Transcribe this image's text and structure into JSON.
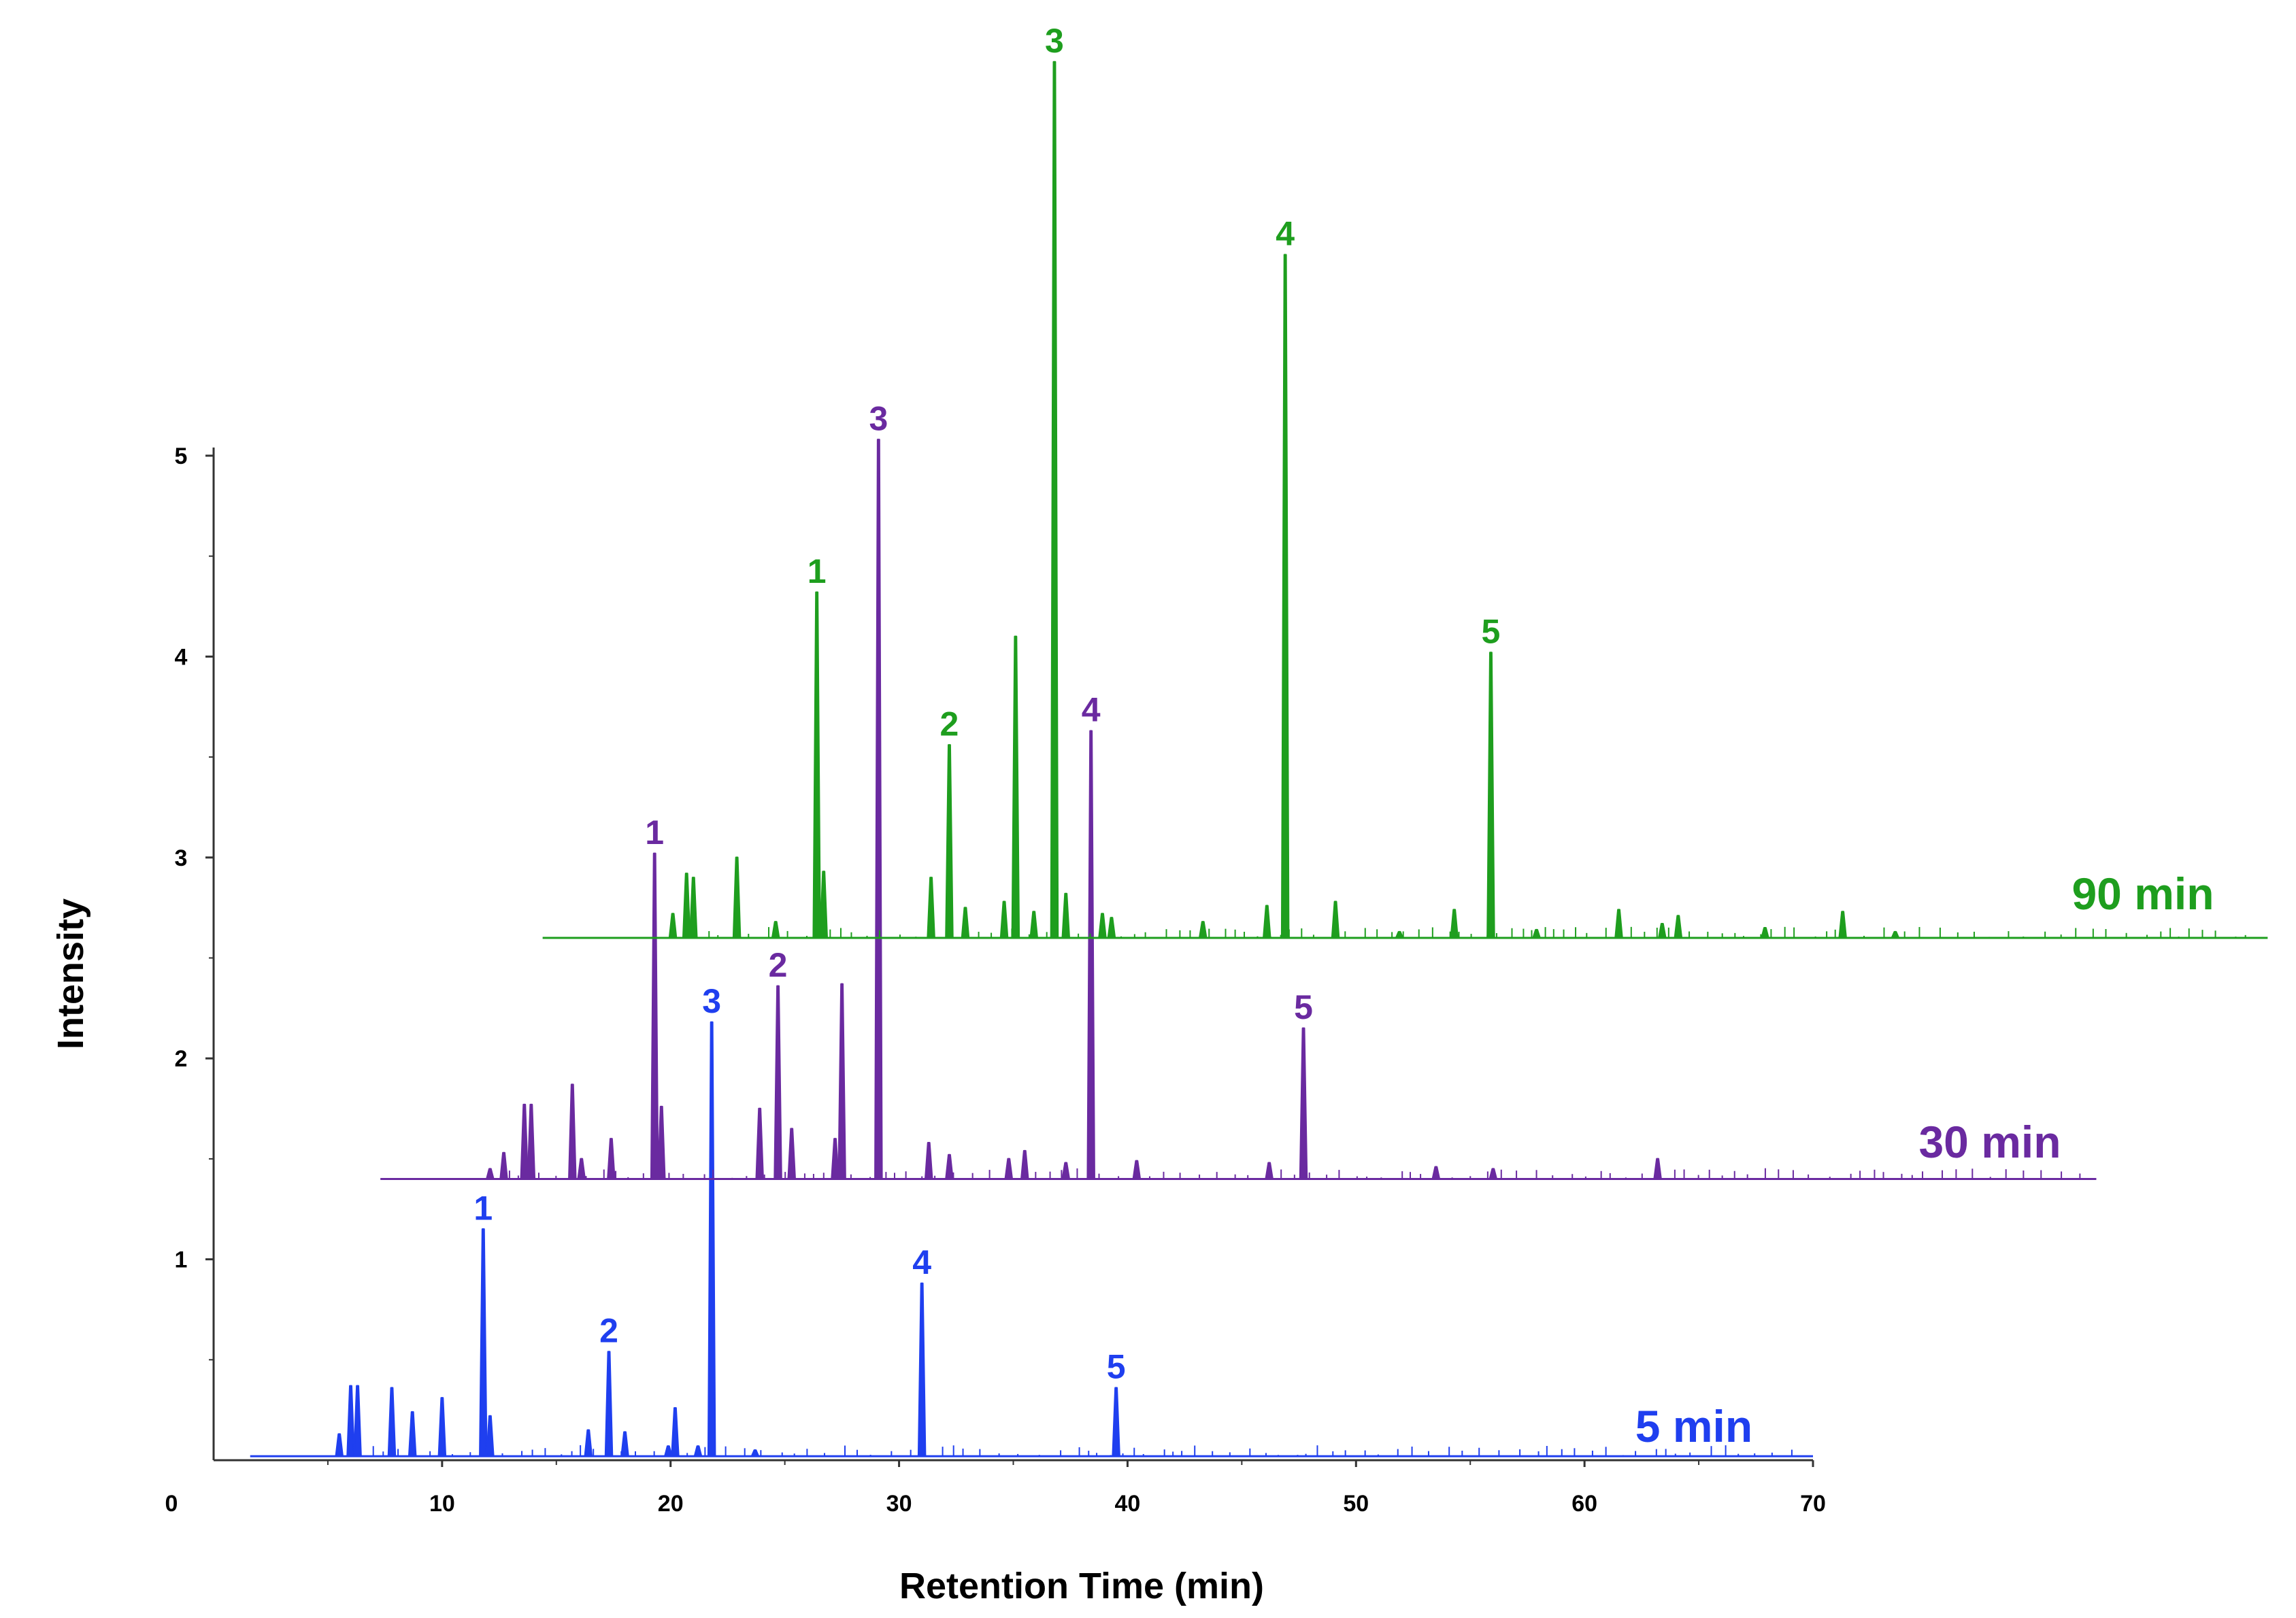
{
  "chart_data": {
    "type": "line",
    "title": "",
    "xlabel": "Retention Time (min)",
    "ylabel": "Intensity",
    "xlim": [
      0,
      70
    ],
    "ylim": [
      0,
      5
    ],
    "xticks": [
      "0",
      "10",
      "20",
      "30",
      "40",
      "50",
      "60",
      "70"
    ],
    "yticks": [
      "1",
      "2",
      "3",
      "4",
      "5"
    ],
    "legend_placement": "right, inline at end of each trace",
    "series": [
      {
        "name": "5 min",
        "color": "#1f3fef",
        "baseline": 0.02,
        "peaks": [
          {
            "t": 5.5,
            "h": 0.13,
            "label": ""
          },
          {
            "t": 6.0,
            "h": 0.37,
            "label": ""
          },
          {
            "t": 6.3,
            "h": 0.37,
            "label": ""
          },
          {
            "t": 7.8,
            "h": 0.36,
            "label": ""
          },
          {
            "t": 8.7,
            "h": 0.24,
            "label": ""
          },
          {
            "t": 10.0,
            "h": 0.31,
            "label": ""
          },
          {
            "t": 11.8,
            "h": 1.15,
            "label": "1"
          },
          {
            "t": 12.1,
            "h": 0.22,
            "label": ""
          },
          {
            "t": 16.4,
            "h": 0.15,
            "label": ""
          },
          {
            "t": 17.3,
            "h": 0.54,
            "label": "2"
          },
          {
            "t": 18.0,
            "h": 0.14,
            "label": ""
          },
          {
            "t": 19.9,
            "h": 0.07,
            "label": ""
          },
          {
            "t": 20.2,
            "h": 0.26,
            "label": ""
          },
          {
            "t": 21.2,
            "h": 0.07,
            "label": ""
          },
          {
            "t": 21.8,
            "h": 2.18,
            "label": "3"
          },
          {
            "t": 23.7,
            "h": 0.05,
            "label": ""
          },
          {
            "t": 31.0,
            "h": 0.88,
            "label": "4"
          },
          {
            "t": 39.5,
            "h": 0.36,
            "label": "5"
          }
        ]
      },
      {
        "name": "30 min",
        "color": "#6a2aa0",
        "baseline": 1.4,
        "peaks": [
          {
            "t": 12.1,
            "h": 1.45,
            "label": ""
          },
          {
            "t": 12.7,
            "h": 1.53,
            "label": ""
          },
          {
            "t": 13.6,
            "h": 1.77,
            "label": ""
          },
          {
            "t": 13.9,
            "h": 1.77,
            "label": ""
          },
          {
            "t": 15.7,
            "h": 1.87,
            "label": ""
          },
          {
            "t": 16.1,
            "h": 1.5,
            "label": ""
          },
          {
            "t": 17.4,
            "h": 1.6,
            "label": ""
          },
          {
            "t": 19.3,
            "h": 3.02,
            "label": "1"
          },
          {
            "t": 19.6,
            "h": 1.76,
            "label": ""
          },
          {
            "t": 23.9,
            "h": 1.75,
            "label": ""
          },
          {
            "t": 24.7,
            "h": 2.36,
            "label": "2"
          },
          {
            "t": 25.3,
            "h": 1.65,
            "label": ""
          },
          {
            "t": 27.2,
            "h": 1.6,
            "label": ""
          },
          {
            "t": 27.5,
            "h": 2.37,
            "label": ""
          },
          {
            "t": 29.1,
            "h": 5.08,
            "label": "3"
          },
          {
            "t": 31.3,
            "h": 1.58,
            "label": ""
          },
          {
            "t": 32.2,
            "h": 1.52,
            "label": ""
          },
          {
            "t": 34.8,
            "h": 1.5,
            "label": ""
          },
          {
            "t": 35.5,
            "h": 1.54,
            "label": ""
          },
          {
            "t": 37.3,
            "h": 1.48,
            "label": ""
          },
          {
            "t": 38.4,
            "h": 3.63,
            "label": "4"
          },
          {
            "t": 40.4,
            "h": 1.49,
            "label": ""
          },
          {
            "t": 46.2,
            "h": 1.48,
            "label": ""
          },
          {
            "t": 47.7,
            "h": 2.15,
            "label": "5"
          },
          {
            "t": 53.5,
            "h": 1.46,
            "label": ""
          },
          {
            "t": 56.0,
            "h": 1.45,
            "label": ""
          },
          {
            "t": 63.2,
            "h": 1.5,
            "label": ""
          }
        ]
      },
      {
        "name": "90 min",
        "color": "#1e9e1e",
        "baseline": 2.6,
        "peaks": [
          {
            "t": 20.1,
            "h": 2.72,
            "label": ""
          },
          {
            "t": 20.7,
            "h": 2.92,
            "label": ""
          },
          {
            "t": 21.0,
            "h": 2.9,
            "label": ""
          },
          {
            "t": 22.9,
            "h": 3.0,
            "label": ""
          },
          {
            "t": 24.6,
            "h": 2.68,
            "label": ""
          },
          {
            "t": 26.4,
            "h": 4.32,
            "label": "1"
          },
          {
            "t": 26.7,
            "h": 2.93,
            "label": ""
          },
          {
            "t": 31.4,
            "h": 2.9,
            "label": ""
          },
          {
            "t": 32.2,
            "h": 3.56,
            "label": "2"
          },
          {
            "t": 32.9,
            "h": 2.75,
            "label": ""
          },
          {
            "t": 34.6,
            "h": 2.78,
            "label": ""
          },
          {
            "t": 35.1,
            "h": 4.1,
            "label": ""
          },
          {
            "t": 35.9,
            "h": 2.73,
            "label": ""
          },
          {
            "t": 36.8,
            "h": 6.96,
            "label": "3"
          },
          {
            "t": 37.3,
            "h": 2.82,
            "label": ""
          },
          {
            "t": 38.9,
            "h": 2.72,
            "label": ""
          },
          {
            "t": 39.3,
            "h": 2.7,
            "label": ""
          },
          {
            "t": 43.3,
            "h": 2.68,
            "label": ""
          },
          {
            "t": 46.1,
            "h": 2.76,
            "label": ""
          },
          {
            "t": 46.9,
            "h": 6.0,
            "label": "4"
          },
          {
            "t": 49.1,
            "h": 2.78,
            "label": ""
          },
          {
            "t": 51.9,
            "h": 2.63,
            "label": ""
          },
          {
            "t": 54.3,
            "h": 2.74,
            "label": ""
          },
          {
            "t": 55.9,
            "h": 4.02,
            "label": "5"
          },
          {
            "t": 57.9,
            "h": 2.64,
            "label": ""
          },
          {
            "t": 61.5,
            "h": 2.74,
            "label": ""
          },
          {
            "t": 63.4,
            "h": 2.67,
            "label": ""
          },
          {
            "t": 64.1,
            "h": 2.71,
            "label": ""
          },
          {
            "t": 67.9,
            "h": 2.65,
            "label": ""
          },
          {
            "t": 71.3,
            "h": 2.73,
            "label": ""
          },
          {
            "t": 73.6,
            "h": 2.63,
            "label": ""
          }
        ]
      }
    ]
  }
}
